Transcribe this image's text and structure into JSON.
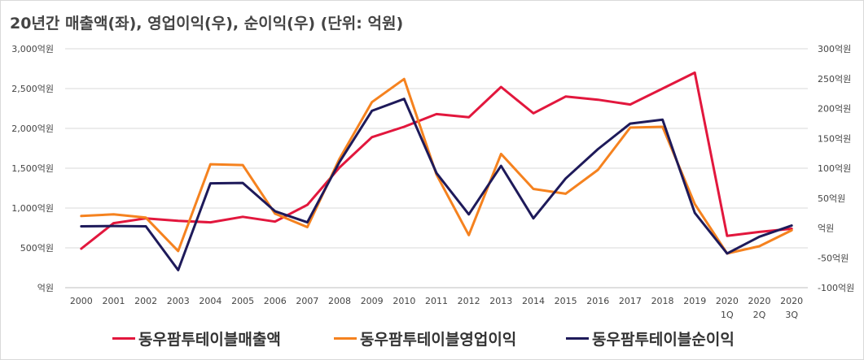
{
  "chart_data": {
    "type": "line",
    "title": "20년간 매출액(좌), 영업이익(우), 순이익(우) (단위: 억원)",
    "categories": [
      "2000",
      "2001",
      "2002",
      "2003",
      "2004",
      "2005",
      "2006",
      "2007",
      "2008",
      "2009",
      "2010",
      "2011",
      "2012",
      "2013",
      "2014",
      "2015",
      "2016",
      "2017",
      "2018",
      "2019",
      "2020\n1Q",
      "2020\n2Q",
      "2020\n3Q"
    ],
    "left_axis": {
      "ylim": [
        0,
        3000
      ],
      "ticks": [
        "억원",
        "500억원",
        "1,000억원",
        "1,500억원",
        "2,000억원",
        "2,500억원",
        "3,000억원"
      ]
    },
    "right_axis": {
      "ylim": [
        -100,
        300
      ],
      "ticks": [
        "-100억원",
        "-50억원",
        "억원",
        "50억원",
        "100억원",
        "150억원",
        "200억원",
        "250억원",
        "300억원"
      ]
    },
    "grid": true,
    "legend_position": "bottom",
    "series": [
      {
        "name": "동우팜투테이블매출액",
        "axis": "left",
        "color": "#e2173d",
        "values": [
          490,
          810,
          870,
          840,
          820,
          890,
          830,
          1040,
          1510,
          1890,
          2020,
          2180,
          2140,
          2520,
          2190,
          2400,
          2360,
          2300,
          2500,
          2700,
          650,
          700,
          740
        ]
      },
      {
        "name": "동우팜투테이블영업이익",
        "axis": "left",
        "color": "#f5821f",
        "values": [
          900,
          920,
          880,
          460,
          1550,
          1540,
          930,
          760,
          1620,
          2330,
          2620,
          1420,
          660,
          1680,
          1240,
          1180,
          1480,
          2010,
          2020,
          1050,
          430,
          520,
          720
        ]
      },
      {
        "name": "동우팜투테이블순이익",
        "axis": "left",
        "color": "#1e1a5a",
        "values": [
          770,
          775,
          770,
          220,
          1310,
          1315,
          960,
          820,
          1580,
          2220,
          2370,
          1440,
          920,
          1530,
          870,
          1370,
          1740,
          2060,
          2110,
          940,
          430,
          640,
          780
        ]
      }
    ]
  }
}
